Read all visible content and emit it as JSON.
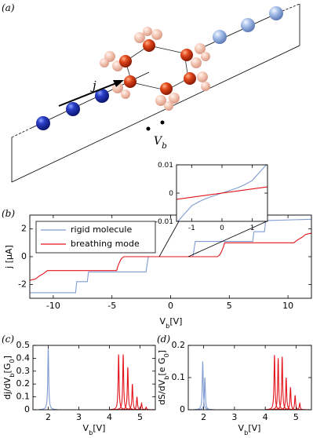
{
  "diagram": {
    "panel_label": "(a)",
    "current_label": "j",
    "voltage_label": "V_{b}"
  },
  "chart_data": [
    {
      "type": "line",
      "panel_label": "(b)",
      "xlabel": "V_{b}[V]",
      "ylabel": "j [µA]",
      "xlim": [
        -12,
        12
      ],
      "ylim": [
        -3,
        3
      ],
      "xticks": [
        -10,
        -5,
        0,
        5,
        10
      ],
      "yticks": [
        -2,
        0,
        2
      ],
      "grid": false,
      "legend": "upper left",
      "series": [
        {
          "name": "rigid molecule",
          "color": "#7f9bd1",
          "x": [
            -12,
            -8.1,
            -8.0,
            -7.1,
            -7.0,
            -2.1,
            -1.9,
            1.9,
            2.1,
            7.0,
            7.1,
            8.0,
            8.1,
            12
          ],
          "values": [
            -2.6,
            -2.6,
            -1.8,
            -1.8,
            -1.1,
            -1.1,
            0,
            0,
            1.1,
            1.1,
            1.8,
            1.8,
            2.6,
            2.7
          ]
        },
        {
          "name": "breathing mode",
          "color": "#e3131b",
          "x": [
            -12,
            -11.5,
            -11.2,
            -10.8,
            -10.5,
            -4.6,
            -4.5,
            -4.4,
            -4.3,
            -4.2,
            -4.0,
            4.0,
            4.2,
            4.3,
            4.4,
            4.5,
            4.6,
            10.5,
            10.8,
            11.2,
            11.5,
            12
          ],
          "values": [
            -1.7,
            -1.6,
            -1.4,
            -1.2,
            -1.0,
            -1.0,
            -0.7,
            -0.5,
            -0.3,
            -0.15,
            0,
            0,
            0.15,
            0.3,
            0.5,
            0.7,
            1.0,
            1.0,
            1.2,
            1.4,
            1.6,
            1.7
          ]
        }
      ],
      "inset": {
        "type": "line",
        "xlim": [
          -1.5,
          1.5
        ],
        "ylim": [
          -0.01,
          0.01
        ],
        "xticks": [
          -1,
          0,
          1
        ],
        "yticks": [
          -0.01,
          0,
          0.01
        ],
        "series": [
          {
            "color": "#7f9bd1",
            "x": [
              -1.5,
              -1.25,
              -1,
              -0.75,
              -0.5,
              -0.25,
              0,
              0.25,
              0.5,
              0.75,
              1,
              1.25,
              1.5
            ],
            "values": [
              -0.0105,
              -0.0075,
              -0.0045,
              -0.003,
              -0.0018,
              -0.0009,
              0,
              0.0009,
              0.0018,
              0.003,
              0.0045,
              0.0075,
              0.0105
            ]
          },
          {
            "color": "#e3131b",
            "x": [
              -1.5,
              1.5
            ],
            "values": [
              -0.0022,
              0.0022
            ]
          }
        ]
      }
    },
    {
      "type": "peaks",
      "panel_label": "(c)",
      "xlabel": "V_{b}[V]",
      "ylabel": "dj/dV_{b}[G_{0}]",
      "xlim": [
        1.5,
        5.5
      ],
      "ylim": [
        0,
        0.5
      ],
      "xticks": [
        2,
        3,
        4,
        5
      ],
      "yticks": [
        0,
        0.1,
        0.2,
        0.3,
        0.4,
        0.5
      ],
      "series": [
        {
          "color": "#7f9bd1",
          "x": [
            2.0
          ],
          "values": [
            0.48
          ]
        },
        {
          "color": "#e3131b",
          "x": [
            4.3,
            4.45,
            4.6,
            4.75,
            4.9,
            5.05,
            5.2
          ],
          "values": [
            0.43,
            0.43,
            0.33,
            0.2,
            0.1,
            0.05,
            0.02
          ]
        }
      ]
    },
    {
      "type": "peaks",
      "panel_label": "(d)",
      "xlabel": "V_{b}[V]",
      "ylabel": "dS/dV_{b}[e G_{0}]",
      "xlim": [
        1.5,
        5.5
      ],
      "ylim": [
        0,
        0.2
      ],
      "xticks": [
        2,
        3,
        4,
        5
      ],
      "yticks": [
        0,
        0.1,
        0.2
      ],
      "series": [
        {
          "color": "#7f9bd1",
          "x": [
            1.97,
            2.04
          ],
          "values": [
            0.15,
            0.1
          ]
        },
        {
          "color": "#e3131b",
          "x": [
            4.3,
            4.42,
            4.55,
            4.68,
            4.82,
            4.97,
            5.12
          ],
          "values": [
            0.17,
            0.16,
            0.165,
            0.1,
            0.07,
            0.045,
            0.02
          ]
        }
      ]
    }
  ]
}
